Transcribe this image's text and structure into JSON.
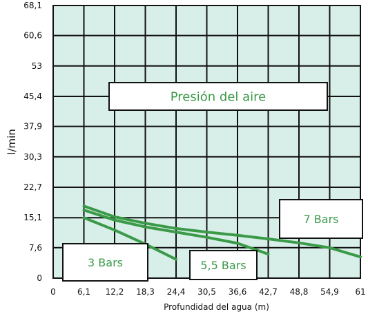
{
  "chart_data": {
    "type": "line",
    "ylabel": "l/min",
    "xlabel": "Profundidad del agua (m)",
    "x_ticks": [
      "0",
      "6,1",
      "12,2",
      "18,3",
      "24,4",
      "30,5",
      "36,6",
      "42,7",
      "48,8",
      "54,9",
      "61"
    ],
    "y_ticks": [
      "0",
      "7,6",
      "15,1",
      "22,7",
      "30,3",
      "37,9",
      "45,4",
      "53",
      "60,6",
      "68,1"
    ],
    "xlim": [
      0,
      61
    ],
    "ylim": [
      0,
      68.1
    ],
    "grid": true,
    "annotation": "Presión del aire",
    "series": [
      {
        "name": "3 Bars",
        "x": [
          6.1,
          12.2,
          18.3,
          24.4
        ],
        "y": [
          15.1,
          12.0,
          8.5,
          4.7
        ]
      },
      {
        "name": "5,5 Bars",
        "x": [
          6.1,
          12.2,
          18.3,
          24.4,
          30.5,
          36.6,
          42.7
        ],
        "y": [
          17.0,
          14.5,
          12.8,
          11.5,
          10.2,
          8.7,
          6.0
        ]
      },
      {
        "name": "7 Bars",
        "x": [
          6.1,
          12.2,
          18.3,
          24.4,
          30.5,
          36.6,
          42.7,
          48.8,
          54.9,
          61
        ],
        "y": [
          18.0,
          15.3,
          13.7,
          12.4,
          11.5,
          10.7,
          9.8,
          8.8,
          7.6,
          5.3
        ]
      }
    ],
    "colors": {
      "background": "#d8eee8",
      "grid": "#111111",
      "line": "#3a9a48",
      "label_text": "#3a9a48"
    }
  }
}
